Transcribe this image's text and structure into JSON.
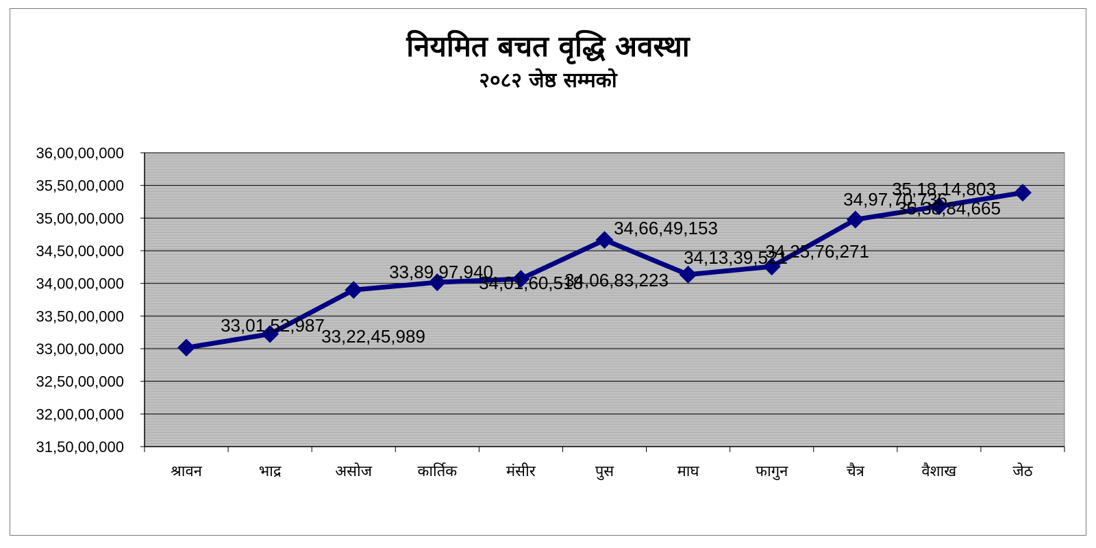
{
  "chart_data": {
    "type": "line",
    "title": "नियमित बचत वृद्धि अवस्था",
    "subtitle": "२०८२ जेष्ठ सम्मको",
    "categories": [
      "श्रावन",
      "भाद्र",
      "असोज",
      "कार्तिक",
      "मंसीर",
      "पुस",
      "माघ",
      "फागुन",
      "चैत्र",
      "वैशाख",
      "जेठ"
    ],
    "series": [
      {
        "values": [
          330152987,
          332245989,
          338997940,
          340160518,
          340683223,
          346649153,
          341339521,
          342576271,
          349770736,
          351814803,
          353884665
        ],
        "labels": [
          "33,01,52,987",
          "33,22,45,989",
          "33,89,97,940",
          "34,01,60,518",
          "34,06,83,223",
          "34,66,49,153",
          "34,13,39,521",
          "34,25,76,271",
          "34,97,70,736",
          "35,18,14,803",
          "35,38,84,665"
        ],
        "color": "#000080"
      }
    ],
    "ylim": [
      315000000,
      360000000
    ],
    "ystep": 5000000,
    "ytick_labels": [
      "31,50,00,000",
      "32,00,00,000",
      "32,50,00,000",
      "33,00,00,000",
      "33,50,00,000",
      "34,00,00,000",
      "34,50,00,000",
      "35,00,00,000",
      "35,50,00,000",
      "36,00,00,000"
    ],
    "grid": true,
    "plot_background": "#c0c0c0",
    "legend": "none"
  }
}
